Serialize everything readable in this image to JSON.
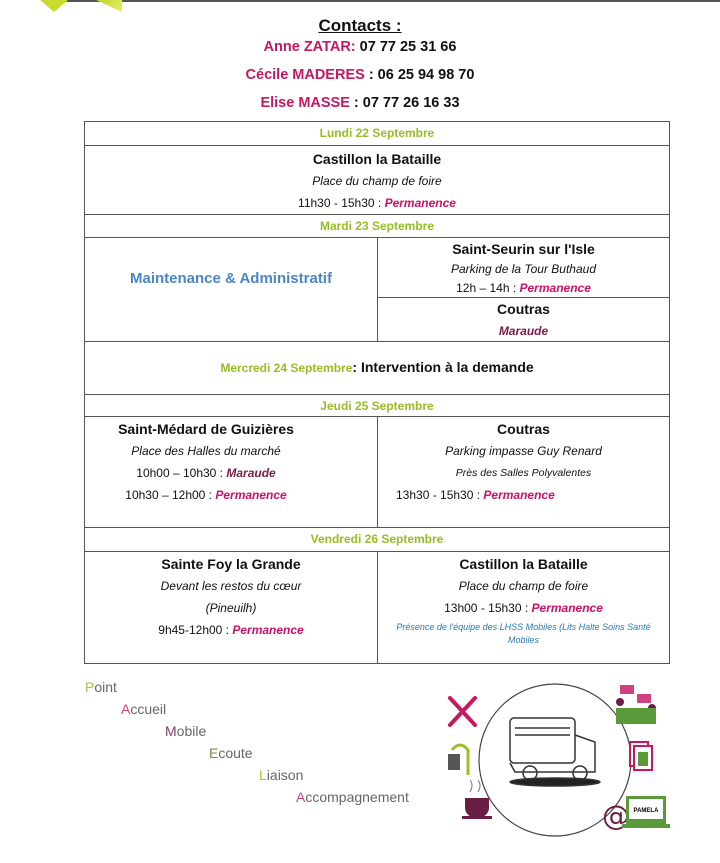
{
  "contacts": {
    "title": "Contacts :",
    "people": [
      {
        "name": "Anne ZATAR:",
        "phone": " 07 77 25 31 66"
      },
      {
        "name": "Cécile MADERES",
        "phone": " : 06 25 94 98 70"
      },
      {
        "name": "Elise MASSE",
        "phone": " : 07 77 26 16 33"
      }
    ]
  },
  "schedule": {
    "lundi": {
      "day": "Lundi 22 Septembre",
      "place": "Castillon la Bataille",
      "location": "Place du champ de foire",
      "time": "11h30 - 15h30 : ",
      "activity": "Permanence"
    },
    "mardi": {
      "day": "Mardi 23 Septembre",
      "left": "Maintenance & Administratif",
      "right1": {
        "place": "Saint-Seurin sur l'Isle",
        "location": "Parking de la Tour Buthaud",
        "time": "12h – 14h : ",
        "activity": "Permanence"
      },
      "right2": {
        "place": "Coutras",
        "activity": "Maraude"
      }
    },
    "mercredi": {
      "day": "Mercredi 24 Septembre",
      "text": ": Intervention à la demande"
    },
    "jeudi": {
      "day": "Jeudi 25 Septembre",
      "left": {
        "place": "Saint-Médard de Guizières",
        "location": "Place des Halles du marché",
        "time1": "10h00 – 10h30 : ",
        "activity1": "Maraude",
        "time2": "10h30 – 12h00 : ",
        "activity2": "Permanence"
      },
      "right": {
        "place": "Coutras",
        "location": "Parking impasse Guy Renard",
        "location2": "Près des Salles Polyvalentes",
        "time": "13h30 - 15h30 : ",
        "activity": "Permanence"
      }
    },
    "vendredi": {
      "day": "Vendredi 26 Septembre",
      "left": {
        "place": "Sainte Foy la Grande",
        "location": "Devant les restos du cœur",
        "location2": "(Pineuilh)",
        "time": "9h45-12h00 : ",
        "activity": "Permanence"
      },
      "right": {
        "place": "Castillon la Bataille",
        "location": "Place du champ de foire",
        "time": "13h00 - 15h30 : ",
        "activity": "Permanence",
        "note": "Présence de l'équipe des LHSS Mobiles (Lits Halte Soins Santé Mobiles"
      }
    }
  },
  "acronym": [
    {
      "letter": "P",
      "rest": "oint",
      "color": "#a4c639"
    },
    {
      "letter": "A",
      "rest": "ccueil",
      "color": "#d0427f"
    },
    {
      "letter": "M",
      "rest": "obile",
      "color": "#8a3a6a"
    },
    {
      "letter": "E",
      "rest": "coute",
      "color": "#6a9a3a"
    },
    {
      "letter": "L",
      "rest": "iaison",
      "color": "#a4c639"
    },
    {
      "letter": "A",
      "rest": "ccompagnement",
      "color": "#d0427f"
    }
  ],
  "illustration": {
    "icons": [
      "cutlery-icon",
      "shower-icon",
      "coffee-cup-icon",
      "meeting-icon",
      "documents-icon",
      "at-sign-icon",
      "laptop-icon",
      "camper-van-icon"
    ],
    "laptop_label": "PAMELA"
  },
  "colors": {
    "name": "#c8175f",
    "day": "#97bd24",
    "permanence": "#cc1166",
    "maraude": "#7a1d4c",
    "maintenance": "#4a86c5",
    "note": "#2a7ab0"
  }
}
